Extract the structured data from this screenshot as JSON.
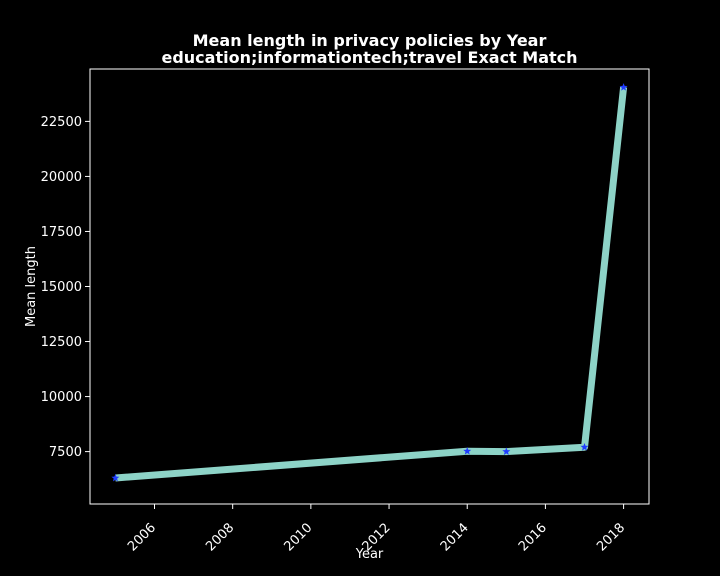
{
  "chart_data": {
    "type": "line",
    "title": "Mean length in privacy policies by Year",
    "subtitle": "education;informationtech;travel Exact Match",
    "xlabel": "Year",
    "ylabel": "Mean length",
    "x": [
      2005,
      2014,
      2015,
      2017,
      2018
    ],
    "y": [
      6300,
      7520,
      7500,
      7700,
      24050
    ],
    "xlim": [
      2004.35,
      2018.65
    ],
    "ylim": [
      5120,
      24880
    ],
    "xticks": [
      2006,
      2008,
      2010,
      2012,
      2014,
      2016,
      2018
    ],
    "yticks": [
      7500,
      10000,
      12500,
      15000,
      17500,
      20000,
      22500
    ],
    "grid": false,
    "colors": {
      "background": "#000000",
      "line": "#8dd3c7",
      "marker": "#1f3cff",
      "axes": "#ffffff",
      "text": "#ffffff"
    }
  }
}
